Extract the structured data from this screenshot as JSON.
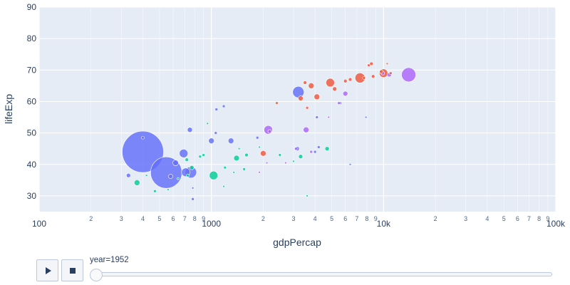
{
  "chart_data": {
    "type": "scatter",
    "subtype": "bubble",
    "xlabel": "gdpPercap",
    "ylabel": "lifeExp",
    "x_scale": "log",
    "xlim": [
      100,
      100000
    ],
    "ylim": [
      25,
      90
    ],
    "grid": true,
    "x_tick_labels": [
      "100",
      "2",
      "3",
      "4",
      "5",
      "6",
      "7",
      "8",
      "9",
      "1000",
      "2",
      "3",
      "4",
      "5",
      "6",
      "7",
      "8",
      "9",
      "10k",
      "2",
      "3",
      "4",
      "5",
      "6",
      "7",
      "8",
      "9",
      "100k"
    ],
    "y_tick_labels": [
      "30",
      "40",
      "50",
      "60",
      "70",
      "80",
      "90"
    ],
    "colors": {
      "asia": "#636efa",
      "europe": "#ef553b",
      "africa": "#00cc96",
      "americas": "#ab63fa"
    },
    "series": [
      {
        "color": "#636efa",
        "points": [
          {
            "x": 400,
            "y": 44,
            "r": 29
          },
          {
            "x": 547,
            "y": 37.4,
            "r": 22
          },
          {
            "x": 3200,
            "y": 63,
            "r": 8
          },
          {
            "x": 690,
            "y": 43.5,
            "r": 6
          },
          {
            "x": 760,
            "y": 37.5,
            "r": 8
          },
          {
            "x": 710,
            "y": 37.5,
            "r": 6
          },
          {
            "x": 620,
            "y": 40.5,
            "r": 4
          },
          {
            "x": 1300,
            "y": 47.5,
            "r": 4
          },
          {
            "x": 1000,
            "y": 47.5,
            "r": 4
          },
          {
            "x": 750,
            "y": 51,
            "r": 3.5
          },
          {
            "x": 330,
            "y": 36.5,
            "r": 3
          },
          {
            "x": 1180,
            "y": 58.5,
            "r": 2
          },
          {
            "x": 1070,
            "y": 57.5,
            "r": 2
          },
          {
            "x": 1060,
            "y": 50,
            "r": 2
          },
          {
            "x": 3150,
            "y": 45,
            "r": 3
          },
          {
            "x": 580,
            "y": 36.2,
            "r": 3
          },
          {
            "x": 780,
            "y": 29,
            "r": 2
          },
          {
            "x": 4100,
            "y": 55,
            "r": 2
          },
          {
            "x": 1850,
            "y": 48.5,
            "r": 2
          },
          {
            "x": 4000,
            "y": 44,
            "r": 2
          },
          {
            "x": 5600,
            "y": 59.5,
            "r": 2
          },
          {
            "x": 4200,
            "y": 45.5,
            "r": 2
          },
          {
            "x": 6400,
            "y": 40,
            "r": 1.5
          },
          {
            "x": 7900,
            "y": 55,
            "r": 1.5
          },
          {
            "x": 780,
            "y": 32.5,
            "r": 1.5
          },
          {
            "x": 400,
            "y": 48.5,
            "r": 2
          }
        ]
      },
      {
        "color": "#ab63fa",
        "points": [
          {
            "x": 13990,
            "y": 68.5,
            "r": 10
          },
          {
            "x": 2140,
            "y": 51,
            "r": 6
          },
          {
            "x": 3550,
            "y": 51,
            "r": 4
          },
          {
            "x": 10800,
            "y": 68.5,
            "r": 3
          },
          {
            "x": 6000,
            "y": 62.5,
            "r": 3.5
          },
          {
            "x": 2180,
            "y": 50.5,
            "r": 2.5
          },
          {
            "x": 9900,
            "y": 69,
            "r": 2.5
          },
          {
            "x": 3800,
            "y": 44,
            "r": 2
          },
          {
            "x": 3100,
            "y": 45,
            "r": 2
          },
          {
            "x": 1900,
            "y": 37.5,
            "r": 1.5
          },
          {
            "x": 2100,
            "y": 40.5,
            "r": 1.5
          },
          {
            "x": 2700,
            "y": 40.5,
            "r": 1.5
          },
          {
            "x": 5500,
            "y": 59.5,
            "r": 2
          },
          {
            "x": 4800,
            "y": 55,
            "r": 1.5
          }
        ]
      },
      {
        "color": "#ef553b",
        "points": [
          {
            "x": 7300,
            "y": 67.5,
            "r": 7
          },
          {
            "x": 10000,
            "y": 69,
            "r": 6
          },
          {
            "x": 4900,
            "y": 66,
            "r": 6
          },
          {
            "x": 3800,
            "y": 65,
            "r": 4
          },
          {
            "x": 4100,
            "y": 61.5,
            "r": 4
          },
          {
            "x": 3300,
            "y": 61,
            "r": 3.5
          },
          {
            "x": 3500,
            "y": 66,
            "r": 2.5
          },
          {
            "x": 5200,
            "y": 64,
            "r": 3
          },
          {
            "x": 8500,
            "y": 72,
            "r": 2.5
          },
          {
            "x": 8200,
            "y": 71.5,
            "r": 2
          },
          {
            "x": 8700,
            "y": 68,
            "r": 2.5
          },
          {
            "x": 9700,
            "y": 69.5,
            "r": 2.5
          },
          {
            "x": 6400,
            "y": 67,
            "r": 2.5
          },
          {
            "x": 6000,
            "y": 66.5,
            "r": 2.5
          },
          {
            "x": 3600,
            "y": 58,
            "r": 2
          },
          {
            "x": 2400,
            "y": 59.5,
            "r": 2
          },
          {
            "x": 2000,
            "y": 43.5,
            "r": 4
          },
          {
            "x": 10500,
            "y": 72,
            "r": 1.5
          },
          {
            "x": 11000,
            "y": 69,
            "r": 2
          },
          {
            "x": 7700,
            "y": 67.5,
            "r": 2
          }
        ]
      },
      {
        "color": "#00cc96",
        "points": [
          {
            "x": 1030,
            "y": 36.5,
            "r": 6
          },
          {
            "x": 370,
            "y": 34.2,
            "r": 4
          },
          {
            "x": 1400,
            "y": 42,
            "r": 4
          },
          {
            "x": 3300,
            "y": 42.5,
            "r": 3
          },
          {
            "x": 4700,
            "y": 45,
            "r": 3
          },
          {
            "x": 770,
            "y": 39,
            "r": 3
          },
          {
            "x": 1600,
            "y": 43,
            "r": 2.5
          },
          {
            "x": 720,
            "y": 41.5,
            "r": 2.5
          },
          {
            "x": 1550,
            "y": 38.5,
            "r": 2
          },
          {
            "x": 900,
            "y": 43,
            "r": 2
          },
          {
            "x": 1200,
            "y": 39,
            "r": 2
          },
          {
            "x": 470,
            "y": 31.5,
            "r": 2
          },
          {
            "x": 560,
            "y": 32,
            "r": 1.5
          },
          {
            "x": 860,
            "y": 42.5,
            "r": 2
          },
          {
            "x": 2500,
            "y": 43,
            "r": 2
          },
          {
            "x": 3600,
            "y": 30,
            "r": 1.5
          },
          {
            "x": 1450,
            "y": 45,
            "r": 1.5
          },
          {
            "x": 950,
            "y": 53,
            "r": 1.5
          },
          {
            "x": 730,
            "y": 36.5,
            "r": 2
          },
          {
            "x": 1350,
            "y": 37.5,
            "r": 1.5
          },
          {
            "x": 640,
            "y": 35.5,
            "r": 1.5
          },
          {
            "x": 420,
            "y": 36.5,
            "r": 1.5
          },
          {
            "x": 1180,
            "y": 33,
            "r": 1.5
          },
          {
            "x": 1900,
            "y": 45.5,
            "r": 1.5
          },
          {
            "x": 3000,
            "y": 41,
            "r": 1.5
          }
        ]
      }
    ]
  },
  "slider": {
    "prefix": "year=",
    "current_value": "1952",
    "position": 0
  },
  "controls": {
    "play_icon": "play-icon",
    "stop_icon": "stop-icon"
  }
}
